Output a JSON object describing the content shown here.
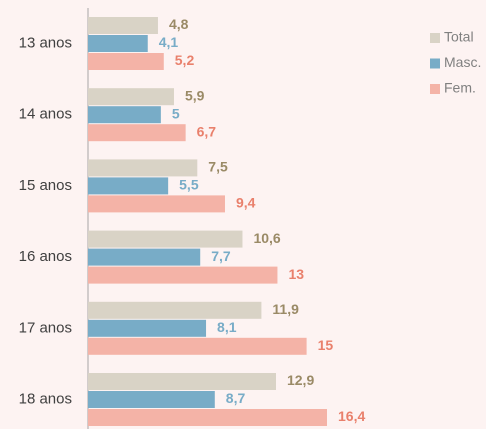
{
  "chart_data": {
    "type": "hbar",
    "categories": [
      "13 anos",
      "14 anos",
      "15 anos",
      "16 anos",
      "17 anos",
      "18 anos"
    ],
    "series": [
      {
        "name": "Total",
        "color": "#d9d3c6",
        "label_color": "#9a8a66",
        "values": [
          4.8,
          5.9,
          7.5,
          10.6,
          11.9,
          12.9
        ],
        "value_labels": [
          "4,8",
          "5,9",
          "7,5",
          "10,6",
          "11,9",
          "12,9"
        ]
      },
      {
        "name": "Masc.",
        "color": "#78acc7",
        "label_color": "#78acc7",
        "values": [
          4.1,
          5,
          5.5,
          7.7,
          8.1,
          8.7
        ],
        "value_labels": [
          "4,1",
          "5",
          "5,5",
          "7,7",
          "8,1",
          "8,7"
        ]
      },
      {
        "name": "Fem.",
        "color": "#f4b3a7",
        "label_color": "#e9806c",
        "values": [
          5.2,
          6.7,
          9.4,
          13,
          15,
          16.4
        ],
        "value_labels": [
          "5,2",
          "6,7",
          "9,4",
          "13",
          "15",
          "16,4"
        ]
      }
    ]
  }
}
